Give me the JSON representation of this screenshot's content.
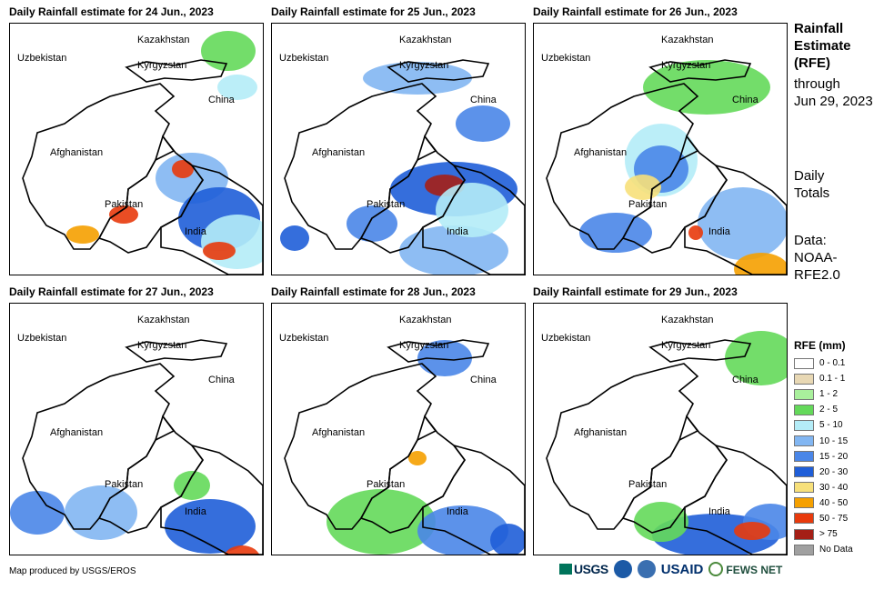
{
  "panels": [
    {
      "title": "Daily Rainfall estimate for 24 Jun., 2023",
      "labels": [
        "Kazakhstan",
        "Uzbekistan",
        "Kyrgyzstan",
        "China",
        "Afghanistan",
        "Pakistan",
        "India"
      ]
    },
    {
      "title": "Daily Rainfall estimate for 25 Jun., 2023",
      "labels": [
        "Kazakhstan",
        "Uzbekistan",
        "Kyrgyzstan",
        "China",
        "Afghanistan",
        "Pakistan",
        "India"
      ]
    },
    {
      "title": "Daily Rainfall estimate for 26 Jun., 2023",
      "labels": [
        "Kazakhstan",
        "Uzbekistan",
        "Kyrgyzstan",
        "China",
        "Afghanistan",
        "Pakistan",
        "India"
      ]
    },
    {
      "title": "Daily Rainfall estimate for 27 Jun., 2023",
      "labels": [
        "Kazakhstan",
        "Uzbekistan",
        "Kyrgyzstan",
        "China",
        "Afghanistan",
        "Pakistan",
        "India"
      ]
    },
    {
      "title": "Daily Rainfall estimate for 28 Jun., 2023",
      "labels": [
        "Kazakhstan",
        "Uzbekistan",
        "Kyrgyzstan",
        "China",
        "Afghanistan",
        "Pakistan",
        "India"
      ]
    },
    {
      "title": "Daily Rainfall estimate for 29 Jun., 2023",
      "labels": [
        "Kazakhstan",
        "Uzbekistan",
        "Kyrgyzstan",
        "China",
        "Afghanistan",
        "Pakistan",
        "India"
      ]
    }
  ],
  "side": {
    "title_lines": [
      "Rainfall",
      "Estimate",
      "(RFE)"
    ],
    "through_lines": [
      "through",
      "Jun 29, 2023"
    ],
    "daily_lines": [
      "Daily",
      "Totals"
    ],
    "data_lines": [
      "Data:",
      "NOAA-",
      "RFE2.0"
    ]
  },
  "legend": {
    "title": "RFE (mm)",
    "items": [
      {
        "label": "0 - 0.1",
        "color": "#ffffff"
      },
      {
        "label": "0.1 - 1",
        "color": "#e8d8b4"
      },
      {
        "label": "1 - 2",
        "color": "#a9f09c"
      },
      {
        "label": "2 - 5",
        "color": "#64d95a"
      },
      {
        "label": "5 - 10",
        "color": "#b4ecf7"
      },
      {
        "label": "10 - 15",
        "color": "#82b6f2"
      },
      {
        "label": "15 - 20",
        "color": "#4a86e8"
      },
      {
        "label": "20 - 30",
        "color": "#1f5ed8"
      },
      {
        "label": "30 - 40",
        "color": "#f7e07a"
      },
      {
        "label": "40 - 50",
        "color": "#f5a000"
      },
      {
        "label": "50 - 75",
        "color": "#e83a0c"
      },
      {
        "label": "> 75",
        "color": "#a51f16"
      },
      {
        "label": "No Data",
        "color": "#a0a0a0"
      }
    ]
  },
  "credit": "Map produced by USGS/EROS",
  "logos": {
    "usgs": "USGS",
    "usaid": "USAID",
    "fews": "FEWS NET",
    "noaa_color": "#1c5aa6",
    "doi_color": "#3a6fb0"
  }
}
